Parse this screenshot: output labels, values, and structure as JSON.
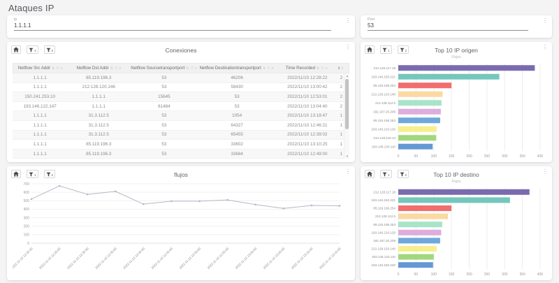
{
  "page": {
    "title": "Ataques IP"
  },
  "filters": {
    "ip": {
      "label": "ip",
      "value": "1.1.1.1"
    },
    "port": {
      "label": "Port",
      "value": "53"
    }
  },
  "panel_toolbar": {
    "filter1_badge": "1",
    "filter2_badge": "2",
    "menu_icon": "⋮"
  },
  "panels": {
    "conexiones": {
      "title": "Conexiones"
    }
  },
  "table": {
    "columns": [
      "Netflow Src Addr",
      "Netflow Dst Addr",
      "Netflow Sourcetransportport",
      "Netflow Destinationtransportport",
      "Time Recorded",
      "Flows"
    ],
    "header_icons": "⇅ ▽ ≡",
    "rows": [
      [
        "1.1.1.1",
        "85.119.196.3",
        "53",
        "46206",
        "2022/11/10 12:28:22",
        "2"
      ],
      [
        "1.1.1.1",
        "212.128.120.146",
        "53",
        "58430",
        "2022/11/10 13:00:42",
        "2"
      ],
      [
        "150.241.253.10",
        "1.1.1.1",
        "15645",
        "53",
        "2022/11/10 12:53:01",
        "2"
      ],
      [
        "193.146.122.147",
        "1.1.1.1",
        "61484",
        "53",
        "2022/11/10 13:04:40",
        "2"
      ],
      [
        "1.1.1.1",
        "31.3.112.5",
        "53",
        "1054",
        "2022/11/10 13:18:47",
        "1"
      ],
      [
        "1.1.1.1",
        "31.3.112.5",
        "53",
        "64327",
        "2022/11/10 12:46:21",
        "1"
      ],
      [
        "1.1.1.1",
        "31.3.112.5",
        "53",
        "65455",
        "2022/11/10 12:39:02",
        "1"
      ],
      [
        "1.1.1.1",
        "85.119.196.3",
        "53",
        "33602",
        "2022/11/10 13:10:25",
        "1"
      ],
      [
        "1.1.1.1",
        "85.119.196.3",
        "53",
        "33684",
        "2022/11/10 12:49:00",
        "1"
      ]
    ]
  },
  "chart_data": [
    {
      "id": "origen",
      "type": "bar",
      "orientation": "horizontal",
      "title": "Top 10 IP origen",
      "subtitle": "Flujos",
      "categories": [
        "212.128.117.18",
        "193.146.150.221",
        "85.119.196.254",
        "212.128.120.146",
        "212.128.112.5",
        "192.187.20.208",
        "85.119.196.253",
        "193.146.210.129",
        "212.128.119.14",
        "193.146.134.110"
      ],
      "values": [
        385,
        285,
        150,
        125,
        122,
        120,
        118,
        108,
        107,
        97
      ],
      "xlim": [
        0,
        400
      ],
      "xticks": [
        0,
        50,
        100,
        150,
        200,
        250,
        300,
        350,
        400
      ],
      "grid": "vertical",
      "legend": "none"
    },
    {
      "id": "flujos",
      "type": "line",
      "title": "flujos",
      "x": [
        "2022-11-10 12:20:00",
        "2022-11-10 12:25:00",
        "2022-11-10 12:30:00",
        "2022-11-10 12:35:00",
        "2022-11-10 12:40:00",
        "2022-11-10 12:45:00",
        "2022-11-10 12:50:00",
        "2022-11-10 12:55:00",
        "2022-11-10 13:00:00",
        "2022-11-10 13:05:00",
        "2022-11-10 13:10:00",
        "2022-11-10 13:15:00"
      ],
      "values": [
        520,
        675,
        575,
        610,
        460,
        495,
        495,
        510,
        455,
        410,
        445,
        440
      ],
      "ylim": [
        0,
        700
      ],
      "yticks": [
        0,
        100,
        200,
        300,
        400,
        500,
        600,
        700
      ],
      "grid": "horizontal",
      "legend": "none"
    },
    {
      "id": "destino",
      "type": "bar",
      "orientation": "horizontal",
      "title": "Top 10 IP destino",
      "subtitle": "Flujos",
      "categories": [
        "212.128.117.18",
        "193.146.150.221",
        "85.119.196.254",
        "212.128.112.5",
        "85.119.196.253",
        "193.146.210.129",
        "192.187.20.208",
        "212.128.120.146",
        "193.146.134.110",
        "193.146.150.220"
      ],
      "values": [
        370,
        315,
        150,
        140,
        124,
        121,
        118,
        108,
        100,
        98
      ],
      "xlim": [
        0,
        400
      ],
      "xticks": [
        0,
        50,
        100,
        150,
        200,
        250,
        300,
        350,
        400
      ],
      "grid": "vertical",
      "legend": "none"
    }
  ],
  "colors": {
    "bar_palette": [
      "#7a6bb0",
      "#74c8bb",
      "#f26d6d",
      "#fbd9a2",
      "#a8e4c8",
      "#dcaede",
      "#6fa8dc",
      "#f6ef8e",
      "#a2d87d",
      "#6598d5"
    ],
    "line": "#b9b5c6",
    "gridline": "#ececec",
    "axis_text": "#9a9a9a",
    "category_text": "#8a8a8a"
  }
}
